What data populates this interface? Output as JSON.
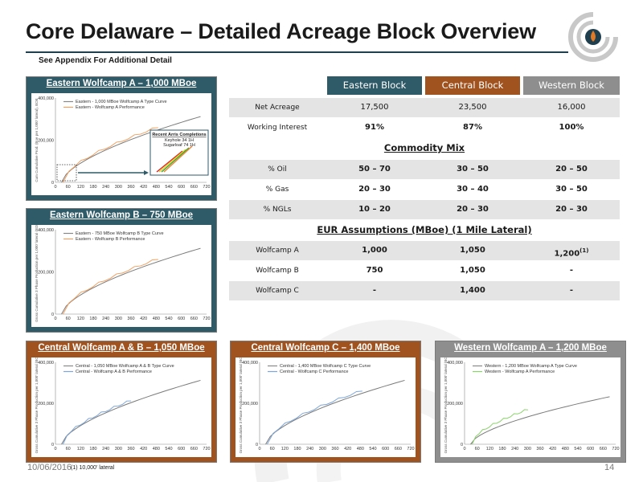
{
  "slide": {
    "title": "Core Delaware – Detailed Acreage Block Overview",
    "subtitle": "See Appendix For Additional Detail",
    "date": "10/06/2016",
    "footnote": "(1)  10,000' lateral",
    "page_number": "14"
  },
  "colors": {
    "teal": "#2f5a68",
    "orange": "#a0521f",
    "grey": "#8e8e8e",
    "accent": "#e07a26"
  },
  "table": {
    "headers": [
      "Eastern Block",
      "Central Block",
      "Western Block"
    ],
    "header_colors": [
      "#2f5a68",
      "#a0521f",
      "#8e8e8e"
    ],
    "general_rows": [
      {
        "label": "Net Acreage",
        "values": [
          "17,500",
          "23,500",
          "16,000"
        ]
      },
      {
        "label": "Working Interest",
        "values": [
          "91%",
          "87%",
          "100%"
        ]
      }
    ],
    "commodity_title": "Commodity Mix",
    "commodity_rows": [
      {
        "label": "% Oil",
        "values": [
          "50 – 70",
          "30 – 50",
          "20 – 50"
        ]
      },
      {
        "label": "% Gas",
        "values": [
          "20 – 30",
          "30 – 40",
          "30 – 50"
        ]
      },
      {
        "label": "% NGLs",
        "values": [
          "10 – 20",
          "20 – 30",
          "20 – 30"
        ]
      }
    ],
    "eur_title": "EUR Assumptions (MBoe) (1 Mile Lateral)",
    "eur_rows": [
      {
        "label": "Wolfcamp A",
        "values": [
          "1,000",
          "1,050",
          "1,200"
        ],
        "last_sup": "(1)"
      },
      {
        "label": "Wolfcamp B",
        "values": [
          "750",
          "1,050",
          "-"
        ],
        "last_sup": ""
      },
      {
        "label": "Wolfcamp C",
        "values": [
          "-",
          "1,400",
          "-"
        ],
        "last_sup": ""
      }
    ]
  },
  "panels": {
    "eastA": {
      "title": "Eastern Wolfcamp A – 1,000 MBoe",
      "ylabel": "Cum Cumulative Prod. (Boe per 1,000' lateral), BOE",
      "y_ticks": [
        "400,000",
        "200,000",
        "0"
      ],
      "x_ticks": [
        "0",
        "60",
        "120",
        "180",
        "240",
        "300",
        "360",
        "420",
        "480",
        "540",
        "600",
        "660",
        "720"
      ],
      "legend": [
        "Eastern - 1,000 MBoe Wolfcamp A Type Curve",
        "Eastern - Wolfcamp A Performance"
      ],
      "inset_title": "Recent Arris Completions",
      "inset_lines": [
        "Keyhole 34 1H",
        "Sugarloaf 74 1H"
      ]
    },
    "eastB": {
      "title": "Eastern Wolfcamp B – 750 MBoe",
      "ylabel": "Gross Cumulative 3 Phase Production per 1,000' lateral (BOE)",
      "y_ticks": [
        "400,000",
        "200,000",
        "0"
      ],
      "x_ticks": [
        "0",
        "60",
        "120",
        "180",
        "240",
        "300",
        "360",
        "420",
        "480",
        "540",
        "600",
        "660",
        "720"
      ],
      "legend": [
        "Eastern - 750 MBoe Wolfcamp B Type Curve",
        "Eastern - Wolfcamp B Performance"
      ]
    },
    "centralAB": {
      "title": "Central Wolfcamp A & B – 1,050 MBoe",
      "ylabel": "Gross Cumulative 3 Phase Production per 1,000' lateral (BOE)",
      "y_ticks": [
        "400,000",
        "200,000",
        "0"
      ],
      "x_ticks": [
        "0",
        "60",
        "120",
        "180",
        "240",
        "300",
        "360",
        "420",
        "480",
        "540",
        "600",
        "660",
        "720"
      ],
      "legend": [
        "Central - 1,050 MBoe Wolfcamp A & B Type Curve",
        "Central - Wolfcamp A & B Performance"
      ]
    },
    "centralC": {
      "title": "Central Wolfcamp C – 1,400 MBoe",
      "ylabel": "Gross Cumulative 3 Phase Production per 1,000' lateral (BOE)",
      "y_ticks": [
        "400,000",
        "200,000",
        "0"
      ],
      "x_ticks": [
        "0",
        "60",
        "120",
        "180",
        "240",
        "300",
        "360",
        "420",
        "480",
        "540",
        "600",
        "660",
        "720"
      ],
      "legend": [
        "Central - 1,400 MBoe Wolfcamp C Type Curve",
        "Central - Wolfcamp C Performance"
      ]
    },
    "westA": {
      "title": "Western Wolfcamp A – 1,200 MBoe",
      "ylabel": "Gross Cumulative 3 Phase Production per 1,000' lateral (BOE)",
      "y_ticks": [
        "400,000",
        "200,000",
        "0"
      ],
      "x_ticks": [
        "0",
        "60",
        "120",
        "180",
        "240",
        "300",
        "360",
        "420",
        "480",
        "540",
        "600",
        "660",
        "720"
      ],
      "legend": [
        "Western - 1,200 MBoe Wolfcamp A Type Curve",
        "Western - Wolfcamp A Performance"
      ]
    }
  }
}
